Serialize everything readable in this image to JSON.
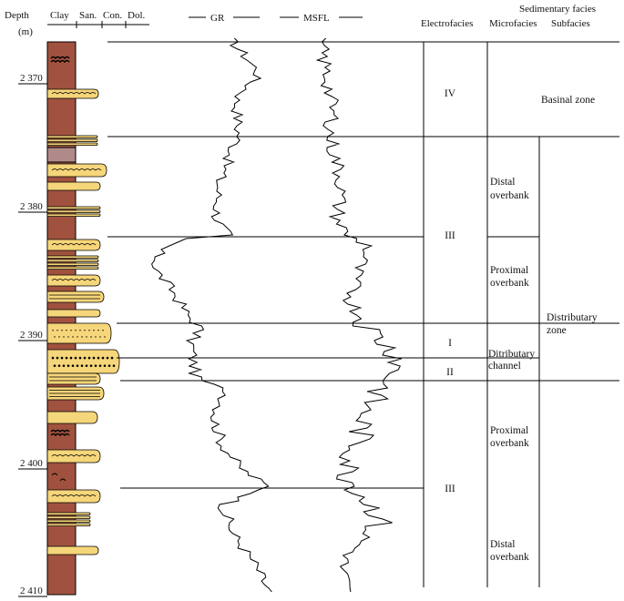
{
  "header": {
    "depth": "Depth",
    "depth_unit": "(m)",
    "lithology": [
      "Clay",
      "San.",
      "Con.",
      "Dol."
    ],
    "curves": [
      "GR",
      "MSFL"
    ],
    "electrofacies": "Electrofacies",
    "sedimentary_facies": "Sedimentary facies",
    "microfacies": "Microfacies",
    "subfacies": "Subfacies"
  },
  "depth_ticks": [
    "2 370",
    "2 380",
    "2 390",
    "2 400",
    "2 410"
  ],
  "electrofacies_labels": [
    "IV",
    "III",
    "I",
    "II",
    "III"
  ],
  "microfacies_labels": [
    [
      "Distal",
      "overbank"
    ],
    [
      "Proximal",
      "overbank"
    ],
    [
      "Ditributary",
      "channel"
    ],
    [
      "Proximal",
      "overbank"
    ],
    [
      "Distal",
      "overbank"
    ]
  ],
  "subfacies_labels": [
    [
      "Basinal zone"
    ],
    [
      "Distributary",
      "zone"
    ]
  ],
  "colors": {
    "clay": "#a0523f",
    "sand": "#f6d67a",
    "mudstone": "#b08a8a",
    "line": "#000000"
  },
  "curve_icons": [
    "gr-log-curve",
    "msfl-log-curve"
  ]
}
